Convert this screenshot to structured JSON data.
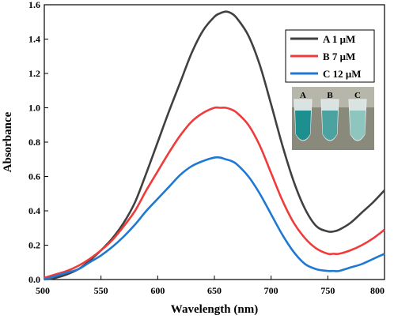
{
  "chart_data": {
    "type": "line",
    "xlabel": "Wavelength (nm)",
    "ylabel": "Absorbance",
    "xlim": [
      500,
      800
    ],
    "ylim": [
      0,
      1.6
    ],
    "xticks": [
      "500",
      "550",
      "600",
      "650",
      "700",
      "750",
      "800"
    ],
    "yticks": [
      "0.0",
      "0.2",
      "0.4",
      "0.6",
      "0.8",
      "1.0",
      "1.2",
      "1.4",
      "1.6"
    ],
    "legend_position": "top-right",
    "grid": false,
    "series": [
      {
        "name": "A 1 μM",
        "color": "#404040",
        "x": [
          500,
          510,
          520,
          530,
          540,
          550,
          560,
          570,
          580,
          590,
          600,
          610,
          620,
          630,
          640,
          650,
          655,
          660,
          665,
          670,
          680,
          690,
          700,
          710,
          720,
          730,
          740,
          750,
          755,
          760,
          770,
          780,
          790,
          800
        ],
        "y": [
          0.0,
          0.01,
          0.03,
          0.06,
          0.11,
          0.17,
          0.24,
          0.33,
          0.45,
          0.62,
          0.8,
          0.98,
          1.15,
          1.32,
          1.45,
          1.53,
          1.55,
          1.56,
          1.55,
          1.52,
          1.42,
          1.25,
          1.02,
          0.78,
          0.57,
          0.41,
          0.31,
          0.28,
          0.28,
          0.29,
          0.33,
          0.39,
          0.45,
          0.52
        ]
      },
      {
        "name": "B 7 μM",
        "color": "#ef3b3b",
        "x": [
          500,
          510,
          520,
          530,
          540,
          550,
          560,
          570,
          580,
          590,
          600,
          610,
          620,
          630,
          640,
          650,
          655,
          660,
          665,
          670,
          680,
          690,
          700,
          710,
          720,
          730,
          740,
          750,
          755,
          760,
          770,
          780,
          790,
          800
        ],
        "y": [
          0.01,
          0.03,
          0.05,
          0.08,
          0.12,
          0.17,
          0.23,
          0.31,
          0.4,
          0.52,
          0.63,
          0.74,
          0.84,
          0.92,
          0.97,
          1.0,
          1.0,
          1.0,
          0.99,
          0.97,
          0.9,
          0.78,
          0.62,
          0.46,
          0.33,
          0.24,
          0.18,
          0.15,
          0.15,
          0.15,
          0.17,
          0.2,
          0.24,
          0.29
        ]
      },
      {
        "name": "C 12 μM",
        "color": "#1f78d1",
        "x": [
          500,
          510,
          520,
          530,
          540,
          550,
          560,
          570,
          580,
          590,
          600,
          610,
          620,
          630,
          640,
          650,
          655,
          660,
          665,
          670,
          680,
          690,
          700,
          710,
          720,
          730,
          740,
          750,
          755,
          760,
          770,
          780,
          790,
          800
        ],
        "y": [
          0.0,
          0.02,
          0.04,
          0.06,
          0.1,
          0.14,
          0.19,
          0.25,
          0.32,
          0.4,
          0.47,
          0.54,
          0.61,
          0.66,
          0.69,
          0.71,
          0.71,
          0.7,
          0.69,
          0.67,
          0.6,
          0.5,
          0.38,
          0.26,
          0.16,
          0.09,
          0.06,
          0.05,
          0.05,
          0.05,
          0.07,
          0.09,
          0.12,
          0.15
        ]
      }
    ]
  },
  "inset": {
    "tube_labels": [
      "A",
      "B",
      "C"
    ],
    "liquid_colors": [
      "#1e8f8f",
      "#4aa3a0",
      "#8ec5bf"
    ],
    "background_color": "#8a8a7c"
  }
}
